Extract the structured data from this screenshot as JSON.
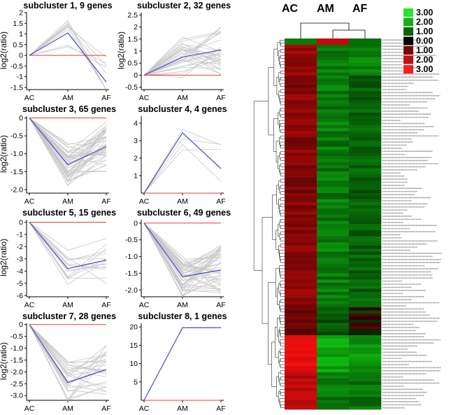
{
  "subclusters": [
    {
      "title": "subcluster 1, 9 genes",
      "ylabel": "log2(ratio)",
      "categories": [
        "AC",
        "AM",
        "AF"
      ],
      "ylim": [
        -1.6,
        2.0
      ],
      "yticks": [
        {
          "v": 2,
          "t": "2"
        },
        {
          "v": 1.5,
          "t": "1.5"
        },
        {
          "v": 1,
          "t": "1"
        },
        {
          "v": 0.5,
          "t": "0.5"
        },
        {
          "v": 0,
          "t": "0"
        },
        {
          "v": -0.5,
          "t": "-0.5"
        },
        {
          "v": -1,
          "t": "-1"
        },
        {
          "v": -1.5,
          "t": "-1.5"
        }
      ],
      "mean": [
        0,
        1.05,
        -1.25
      ]
    },
    {
      "title": "subcluster 2, 32 genes",
      "ylabel": "log2(ratio)",
      "categories": [
        "AC",
        "AM",
        "AF"
      ],
      "ylim": [
        -0.6,
        2.6
      ],
      "yticks": [
        {
          "v": 2.5,
          "t": "2.5"
        },
        {
          "v": 2,
          "t": "2"
        },
        {
          "v": 1.5,
          "t": "1.5"
        },
        {
          "v": 1,
          "t": "1"
        },
        {
          "v": 0.5,
          "t": "0.5"
        },
        {
          "v": 0,
          "t": "0"
        },
        {
          "v": -0.5,
          "t": "-0.5"
        }
      ],
      "mean": [
        0,
        0.75,
        1.05
      ]
    },
    {
      "title": "subcluster 3, 65 genes",
      "ylabel": "log2(ratio)",
      "categories": [
        "AC",
        "AM",
        "AF"
      ],
      "ylim": [
        -2.1,
        0.05
      ],
      "yticks": [
        {
          "v": 0,
          "t": "0"
        },
        {
          "v": -0.5,
          "t": "-0.5"
        },
        {
          "v": -1,
          "t": "-1.0"
        },
        {
          "v": -1.5,
          "t": "-1.5"
        },
        {
          "v": -2,
          "t": "-2.0"
        }
      ],
      "mean": [
        0,
        -1.3,
        -0.8
      ]
    },
    {
      "title": "subcluster 4, 4 genes",
      "ylabel": "",
      "categories": [
        "AC",
        "AM",
        "AF"
      ],
      "ylim": [
        0,
        4.4
      ],
      "yticks": [
        {
          "v": 4,
          "t": "4"
        },
        {
          "v": 3,
          "t": "3"
        },
        {
          "v": 2,
          "t": "2"
        },
        {
          "v": 1,
          "t": "1"
        }
      ],
      "mean": [
        0,
        3.45,
        1.4
      ]
    },
    {
      "title": "subcluster 5, 15 genes",
      "ylabel": "log2(ratio)",
      "categories": [
        "AC",
        "AM",
        "AF"
      ],
      "ylim": [
        -6.1,
        0.2
      ],
      "yticks": [
        {
          "v": 0,
          "t": "0"
        },
        {
          "v": -1,
          "t": "-1"
        },
        {
          "v": -2,
          "t": "-2"
        },
        {
          "v": -3,
          "t": "-3"
        },
        {
          "v": -4,
          "t": "-4"
        },
        {
          "v": -5,
          "t": "-5"
        },
        {
          "v": -6,
          "t": "-6"
        }
      ],
      "mean": [
        0,
        -3.8,
        -3.1
      ]
    },
    {
      "title": "subcluster 6, 49 genes",
      "ylabel": "",
      "categories": [
        "AC",
        "AM",
        "AF"
      ],
      "ylim": [
        -2.2,
        0.1
      ],
      "yticks": [
        {
          "v": 0,
          "t": "0"
        },
        {
          "v": -0.5,
          "t": "-0.5"
        },
        {
          "v": -1,
          "t": "-1.0"
        },
        {
          "v": -1.5,
          "t": "-1.5"
        },
        {
          "v": -2,
          "t": "-2.0"
        }
      ],
      "mean": [
        0,
        -1.6,
        -1.4
      ]
    },
    {
      "title": "subcluster 7, 28 genes",
      "ylabel": "log2(ratio)",
      "categories": [
        "AC",
        "AM",
        "AF"
      ],
      "ylim": [
        -3.2,
        0.05
      ],
      "yticks": [
        {
          "v": 0,
          "t": "0"
        },
        {
          "v": -0.5,
          "t": "-0.5"
        },
        {
          "v": -1,
          "t": "-1.0"
        },
        {
          "v": -1.5,
          "t": "-1.5"
        },
        {
          "v": -2,
          "t": "-2.0"
        },
        {
          "v": -2.5,
          "t": "-2.5"
        },
        {
          "v": -3,
          "t": "-3.0"
        }
      ],
      "mean": [
        0,
        -2.45,
        -1.9
      ]
    },
    {
      "title": "subcluster 8, 1 genes",
      "ylabel": "",
      "categories": [
        "AC",
        "AM",
        "AF"
      ],
      "ylim": [
        0,
        21
      ],
      "yticks": [
        {
          "v": 20,
          "t": "20"
        },
        {
          "v": 15,
          "t": "15"
        },
        {
          "v": 10,
          "t": "10"
        },
        {
          "v": 5,
          "t": "5"
        }
      ],
      "mean": [
        0,
        19.8,
        19.8
      ]
    }
  ],
  "chart_data": {
    "type": "line",
    "charts": [
      {
        "title": "subcluster 1, 9 genes",
        "categories": [
          "AC",
          "AM",
          "AF"
        ],
        "mean": [
          0,
          1.05,
          -1.25
        ],
        "ylim": [
          -1.6,
          2.0
        ]
      },
      {
        "title": "subcluster 2, 32 genes",
        "categories": [
          "AC",
          "AM",
          "AF"
        ],
        "mean": [
          0,
          0.75,
          1.05
        ],
        "ylim": [
          -0.6,
          2.6
        ]
      },
      {
        "title": "subcluster 3, 65 genes",
        "categories": [
          "AC",
          "AM",
          "AF"
        ],
        "mean": [
          0,
          -1.3,
          -0.8
        ],
        "ylim": [
          -2.1,
          0.05
        ]
      },
      {
        "title": "subcluster 4, 4 genes",
        "categories": [
          "AC",
          "AM",
          "AF"
        ],
        "mean": [
          0,
          3.45,
          1.4
        ],
        "ylim": [
          0,
          4.4
        ]
      },
      {
        "title": "subcluster 5, 15 genes",
        "categories": [
          "AC",
          "AM",
          "AF"
        ],
        "mean": [
          0,
          -3.8,
          -3.1
        ],
        "ylim": [
          -6.1,
          0.2
        ]
      },
      {
        "title": "subcluster 6, 49 genes",
        "categories": [
          "AC",
          "AM",
          "AF"
        ],
        "mean": [
          0,
          -1.6,
          -1.4
        ],
        "ylim": [
          -2.2,
          0.1
        ]
      },
      {
        "title": "subcluster 7, 28 genes",
        "categories": [
          "AC",
          "AM",
          "AF"
        ],
        "mean": [
          0,
          -2.45,
          -1.9
        ],
        "ylim": [
          -3.2,
          0.05
        ]
      },
      {
        "title": "subcluster 8, 1 genes",
        "categories": [
          "AC",
          "AM",
          "AF"
        ],
        "mean": [
          0,
          19.8,
          19.8
        ],
        "ylim": [
          0,
          21
        ]
      }
    ],
    "colors": {
      "mean_line": "#4a4ad0",
      "baseline": "#e0403a",
      "gene_lines": "#c8c8c8"
    }
  },
  "heatmap": {
    "type": "heatmap",
    "columns": [
      "AC",
      "AM",
      "AF"
    ],
    "legend": [
      {
        "label": "3.00",
        "color": "#2fe02f"
      },
      {
        "label": "2.00",
        "color": "#16b016"
      },
      {
        "label": "1.00",
        "color": "#0a650a"
      },
      {
        "label": "0.00",
        "color": "#000000"
      },
      {
        "label": "1.00",
        "color": "#7a0606"
      },
      {
        "label": "2.00",
        "color": "#c01010"
      },
      {
        "label": "3.00",
        "color": "#f02020"
      }
    ],
    "row_count": 120
  }
}
